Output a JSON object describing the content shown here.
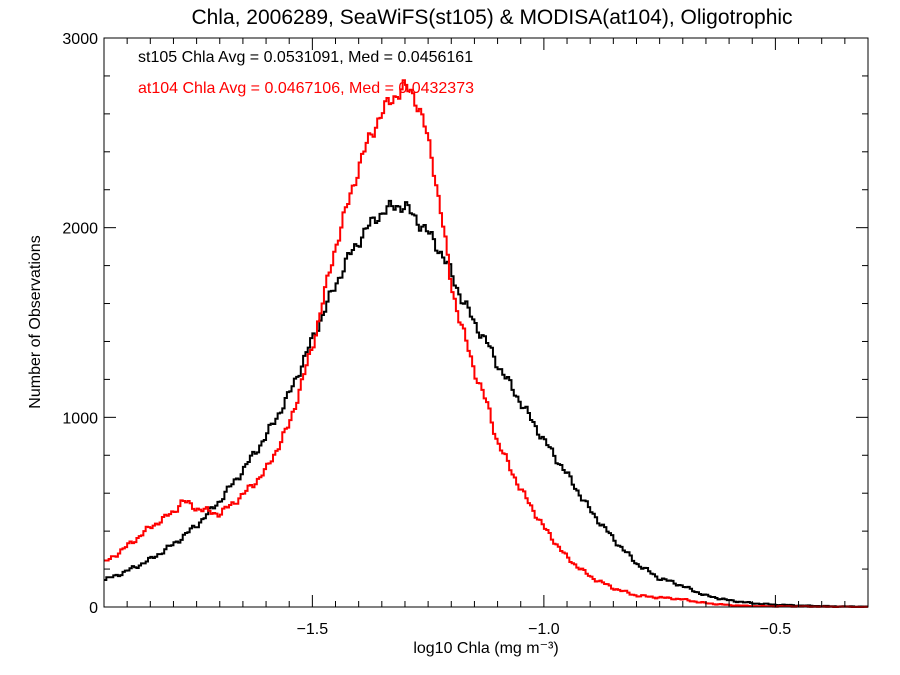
{
  "chart_data": {
    "type": "line",
    "title": "Chla, 2006289, SeaWiFS(st105) & MODISA(at104), Oligotrophic",
    "xlabel": "log10 Chla (mg m⁻³)",
    "ylabel": "Number of Observations",
    "xlim": [
      -1.95,
      -0.3
    ],
    "ylim": [
      0,
      3000
    ],
    "xticks": [
      -1.5,
      -1.0,
      -0.5
    ],
    "xtick_labels": [
      "−1.5",
      "−1.0",
      "−0.5"
    ],
    "yticks": [
      0,
      1000,
      2000,
      3000
    ],
    "ytick_labels": [
      "0",
      "1000",
      "2000",
      "3000"
    ],
    "grid": false,
    "annotations": [
      {
        "text": "st105 Chla Avg = 0.0531091, Med = 0.0456161",
        "color": "#000000"
      },
      {
        "text": "at104 Chla Avg = 0.0467106, Med = 0.0432373",
        "color": "#ff0000"
      }
    ],
    "series": [
      {
        "color": "#000000",
        "x": [
          -1.95,
          -1.9,
          -1.85,
          -1.8,
          -1.75,
          -1.7,
          -1.65,
          -1.6,
          -1.55,
          -1.5,
          -1.45,
          -1.42,
          -1.4,
          -1.38,
          -1.36,
          -1.34,
          -1.32,
          -1.3,
          -1.28,
          -1.26,
          -1.24,
          -1.22,
          -1.2,
          -1.18,
          -1.15,
          -1.12,
          -1.1,
          -1.05,
          -1.0,
          -0.95,
          -0.9,
          -0.85,
          -0.8,
          -0.75,
          -0.72,
          -0.7,
          -0.65,
          -0.6,
          -0.55,
          -0.5,
          -0.45,
          -0.4,
          -0.35,
          -0.3
        ],
        "y": [
          140,
          190,
          250,
          330,
          430,
          560,
          720,
          900,
          1120,
          1410,
          1700,
          1850,
          1930,
          2000,
          2060,
          2090,
          2120,
          2110,
          2060,
          2000,
          1940,
          1860,
          1760,
          1640,
          1500,
          1380,
          1280,
          1080,
          880,
          700,
          510,
          360,
          230,
          150,
          130,
          110,
          60,
          35,
          20,
          12,
          8,
          5,
          3,
          2
        ]
      },
      {
        "color": "#ff0000",
        "x": [
          -1.95,
          -1.9,
          -1.85,
          -1.8,
          -1.78,
          -1.75,
          -1.7,
          -1.65,
          -1.6,
          -1.55,
          -1.5,
          -1.45,
          -1.42,
          -1.4,
          -1.38,
          -1.36,
          -1.34,
          -1.32,
          -1.3,
          -1.28,
          -1.26,
          -1.24,
          -1.22,
          -1.2,
          -1.18,
          -1.15,
          -1.12,
          -1.1,
          -1.05,
          -1.0,
          -0.95,
          -0.9,
          -0.85,
          -0.8,
          -0.75,
          -0.72,
          -0.7,
          -0.65,
          -0.6,
          -0.55,
          -0.5,
          -0.45,
          -0.4,
          -0.35,
          -0.3
        ],
        "y": [
          230,
          320,
          420,
          500,
          560,
          520,
          490,
          590,
          720,
          960,
          1370,
          1900,
          2150,
          2320,
          2450,
          2560,
          2640,
          2700,
          2740,
          2700,
          2560,
          2350,
          2050,
          1700,
          1500,
          1250,
          1050,
          870,
          620,
          420,
          260,
          160,
          100,
          60,
          50,
          45,
          40,
          20,
          10,
          5,
          3,
          2,
          1,
          1,
          0
        ]
      }
    ]
  }
}
